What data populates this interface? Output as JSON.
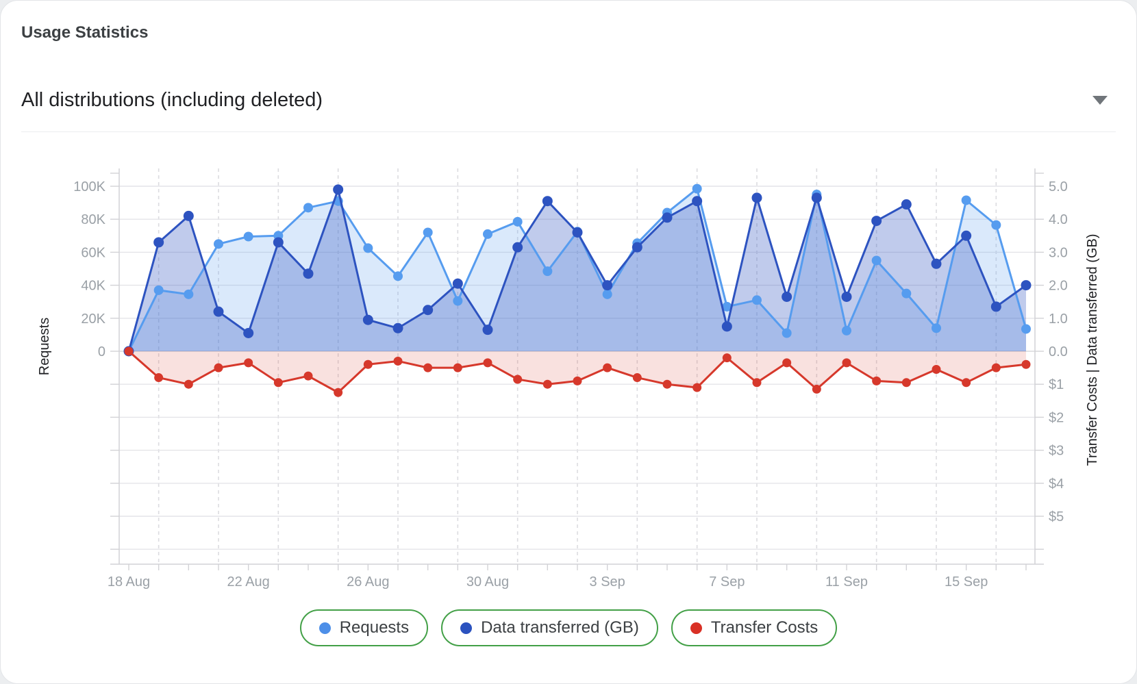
{
  "header": {
    "title": "Usage Statistics"
  },
  "filter": {
    "selected": "All distributions (including deleted)",
    "caret_icon": "chevron-down"
  },
  "chart_data": {
    "type": "area",
    "x": [
      "18 Aug",
      "19 Aug",
      "20 Aug",
      "21 Aug",
      "22 Aug",
      "23 Aug",
      "24 Aug",
      "25 Aug",
      "26 Aug",
      "27 Aug",
      "28 Aug",
      "29 Aug",
      "30 Aug",
      "31 Aug",
      "1 Sep",
      "2 Sep",
      "3 Sep",
      "4 Sep",
      "5 Sep",
      "6 Sep",
      "7 Sep",
      "8 Sep",
      "9 Sep",
      "10 Sep",
      "11 Sep",
      "12 Sep",
      "13 Sep",
      "14 Sep",
      "15 Sep",
      "16 Sep",
      "17 Sep"
    ],
    "x_tick_labels": [
      "18 Aug",
      "22 Aug",
      "26 Aug",
      "30 Aug",
      "3 Sep",
      "7 Sep",
      "11 Sep",
      "15 Sep"
    ],
    "x_tick_label_days": [
      0,
      4,
      8,
      12,
      16,
      20,
      24,
      28
    ],
    "left_axis": {
      "label": "Requests",
      "ticks": [
        "0",
        "20K",
        "40K",
        "60K",
        "80K",
        "100K"
      ],
      "max_requests": 100000
    },
    "right_axis": {
      "label": "Transfer Costs | Data transferred (GB)",
      "ticks_positive": [
        "0.0",
        "1.0",
        "2.0",
        "3.0",
        "4.0",
        "5.0"
      ],
      "ticks_negative": [
        "$1",
        "$2",
        "$3",
        "$4",
        "$5"
      ],
      "gb_max": 5.0,
      "cost_max": 5.0
    },
    "series": [
      {
        "name": "Requests",
        "unit": "thousands",
        "color": "#569CEF",
        "fill": "rgba(86,156,239,0.22)",
        "values": [
          0,
          37,
          34.5,
          65,
          69.5,
          70,
          87,
          91,
          62.5,
          45.5,
          72,
          30.5,
          71,
          78.5,
          48.5,
          72.5,
          34.5,
          65.5,
          84,
          98.5,
          27,
          31,
          11,
          95,
          12.5,
          55,
          35,
          14,
          91.5,
          76.5,
          13.5
        ]
      },
      {
        "name": "Data transferred (GB)",
        "unit": "GB",
        "color": "#2D53C0",
        "fill": "rgba(45,83,192,0.30)",
        "values": [
          0,
          3.3,
          4.1,
          1.2,
          0.55,
          3.3,
          2.35,
          4.9,
          0.95,
          0.7,
          1.25,
          2.05,
          0.65,
          3.15,
          4.55,
          3.6,
          2.0,
          3.15,
          4.05,
          4.55,
          0.75,
          4.65,
          1.65,
          4.65,
          1.65,
          3.95,
          4.45,
          2.65,
          3.5,
          1.35,
          2.0
        ]
      },
      {
        "name": "Transfer Costs",
        "unit": "USD",
        "color": "#D6382B",
        "fill": "rgba(214,56,43,0.15)",
        "values": [
          0,
          0.8,
          1.0,
          0.5,
          0.35,
          0.95,
          0.75,
          1.25,
          0.4,
          0.3,
          0.5,
          0.5,
          0.35,
          0.85,
          1.0,
          0.9,
          0.5,
          0.8,
          1.0,
          1.1,
          0.2,
          0.95,
          0.35,
          1.15,
          0.35,
          0.9,
          0.95,
          0.55,
          0.95,
          0.5,
          0.4
        ]
      }
    ],
    "legend": [
      {
        "label": "Requests",
        "color": "#4D8FE8"
      },
      {
        "label": "Data transferred (GB)",
        "color": "#2B52BF"
      },
      {
        "label": "Transfer Costs",
        "color": "#D93025"
      }
    ],
    "legend_border_color": "#43A047",
    "grid": {
      "solid_color": "#e4e4e8",
      "zero_color": "#d8d8dc",
      "dashed_color": "#dcdce0",
      "axis_color": "#d2d2d6",
      "tick_text_color": "#9aa0a6"
    }
  }
}
